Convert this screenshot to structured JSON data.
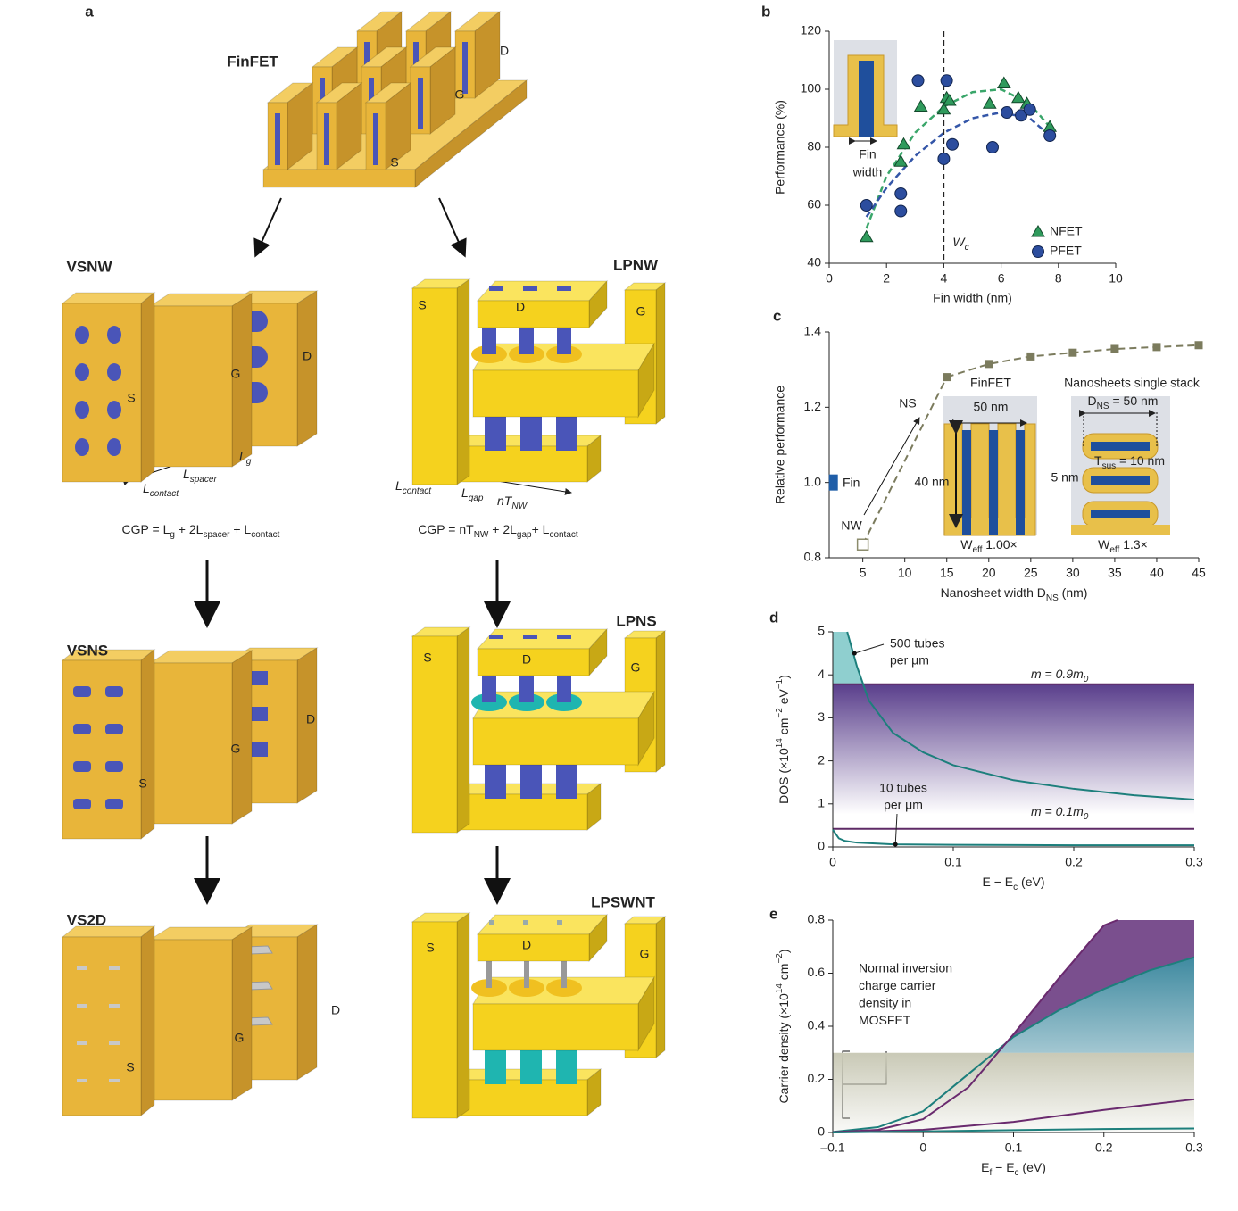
{
  "panel_a": {
    "label": "a",
    "devices": [
      {
        "name": "FinFET",
        "source": "S",
        "gate": "G",
        "drain": "D"
      },
      {
        "name": "VSNW",
        "source": "S",
        "gate": "G",
        "drain": "D"
      },
      {
        "name": "LPNW",
        "source": "S",
        "gate": "G",
        "drain": "D"
      },
      {
        "name": "VSNS",
        "source": "S",
        "gate": "G",
        "drain": "D"
      },
      {
        "name": "LPNS",
        "source": "S",
        "gate": "G",
        "drain": "D"
      },
      {
        "name": "VS2D",
        "source": "S",
        "gate": "G",
        "drain": "D"
      },
      {
        "name": "LPSWNT",
        "source": "S",
        "gate": "G",
        "drain": "D"
      }
    ],
    "vsnw_dimensions": [
      [
        {
          "main": "L",
          "sub": "contact"
        }
      ],
      [
        {
          "main": "L",
          "sub": "spacer"
        }
      ],
      [
        {
          "main": "L",
          "sub": "g"
        }
      ]
    ],
    "lpnw_dimensions": [
      [
        {
          "main": "L",
          "sub": "contact"
        }
      ],
      [
        {
          "main": "L",
          "sub": "gap"
        }
      ],
      [
        {
          "main": "nT",
          "sub": "NW"
        }
      ]
    ],
    "vsnw_formula": [
      {
        "main": "CGP = L",
        "sub": "g"
      },
      {
        "main": " + 2L",
        "sub": "spacer"
      },
      {
        "main": " + L",
        "sub": "contact"
      }
    ],
    "lpnw_formula": [
      {
        "main": "CGP = nT",
        "sub": "NW"
      },
      {
        "main": " + 2L",
        "sub": "gap"
      },
      {
        "main": "+ L",
        "sub": "contact"
      }
    ]
  },
  "chart_data": [
    {
      "label": "b",
      "type": "scatter",
      "x_label": "Fin width (nm)",
      "y_label": "Performance (%)",
      "xlim": [
        0,
        10
      ],
      "xticks": [
        0,
        2,
        4,
        6,
        8,
        10
      ],
      "ylim": [
        40,
        120
      ],
      "yticks": [
        40,
        60,
        80,
        100,
        120
      ],
      "series": [
        {
          "name": "NFET",
          "color": "#2f9a5c",
          "marker": "triangle",
          "x": [
            1.3,
            2.5,
            2.6,
            3.2,
            4.0,
            4.1,
            4.2,
            5.6,
            6.1,
            6.6,
            6.9,
            7.7
          ],
          "values": [
            49,
            75,
            81,
            94,
            93,
            97,
            96,
            95,
            102,
            97,
            95,
            87
          ]
        },
        {
          "name": "PFET",
          "color": "#2c4d9e",
          "marker": "circle",
          "x": [
            1.3,
            2.5,
            2.5,
            3.1,
            4.0,
            4.1,
            4.3,
            5.7,
            6.2,
            6.7,
            7.0,
            7.7
          ],
          "values": [
            60,
            64,
            58,
            103,
            76,
            103,
            81,
            80,
            92,
            91,
            93,
            84
          ]
        }
      ],
      "fits": [
        {
          "color": "#3aa66a",
          "x": [
            1.3,
            2,
            3,
            4,
            5,
            6,
            7,
            7.7
          ],
          "values": [
            52,
            70,
            85,
            94,
            99,
            100,
            95,
            87
          ]
        },
        {
          "color": "#3456a8",
          "x": [
            1.3,
            2,
            3,
            4,
            5,
            6,
            7,
            7.7
          ],
          "values": [
            56,
            66,
            77,
            85,
            90,
            92,
            90,
            84
          ]
        }
      ],
      "threshold": {
        "x": 4,
        "label": [
          {
            "main": "W",
            "sub": "c"
          }
        ]
      },
      "inset_label": [
        "Fin",
        "width"
      ],
      "legend": "lower right"
    },
    {
      "label": "c",
      "type": "scatter",
      "x_label": [
        {
          "main": "Nanosheet width D",
          "sub": "NS"
        },
        {
          "main": " (nm)"
        }
      ],
      "y_label": "Relative performance",
      "xlim": [
        1,
        45
      ],
      "xticks": [
        5,
        10,
        15,
        20,
        25,
        30,
        35,
        40,
        45
      ],
      "ylim": [
        0.8,
        1.4
      ],
      "yticks": [
        0.8,
        {
          "value": 1,
          "label": "1.0"
        },
        1.2,
        1.4
      ],
      "series": [
        {
          "name": "NW",
          "color": "#8c8c6c",
          "marker": "open-square",
          "x": [
            5
          ],
          "values": [
            0.835
          ]
        },
        {
          "name": "NS",
          "color": "#7b7b5d",
          "marker": "square",
          "line": "dashed",
          "x": [
            15,
            20,
            25,
            30,
            35,
            40,
            45
          ],
          "values": [
            1.28,
            1.315,
            1.335,
            1.345,
            1.355,
            1.36,
            1.365
          ]
        },
        {
          "name": "Fin",
          "color": "#1f5ea8",
          "marker": "bar",
          "x": [
            1.5
          ],
          "values": [
            1
          ]
        }
      ],
      "insets": {
        "finfet": {
          "title": "FinFET",
          "width": "50 nm",
          "height": "40 nm",
          "w_eff": [
            {
              "main": "W",
              "sub": "eff"
            },
            {
              "main": " 1.00×"
            }
          ]
        },
        "nanosheets": {
          "title": "Nanosheets single stack",
          "width": [
            {
              "main": "D",
              "sub": "NS"
            },
            {
              "main": " = 50 nm"
            }
          ],
          "t_sus": [
            {
              "main": "T",
              "sub": "sus"
            },
            {
              "main": " = 10 nm"
            }
          ],
          "gap": "5 nm",
          "w_eff": [
            {
              "main": "W",
              "sub": "eff"
            },
            {
              "main": " 1.3×"
            }
          ]
        }
      }
    },
    {
      "label": "d",
      "type": "line",
      "x_label": [
        {
          "main": "E − E",
          "sub": "c"
        },
        {
          "main": " (eV)"
        }
      ],
      "y_label": [
        {
          "main": "DOS (×10",
          "sup": "14"
        },
        {
          "main": " cm",
          "sup": "−2"
        },
        {
          "main": " eV",
          "sup": "−1"
        },
        {
          "main": ")"
        }
      ],
      "xlim": [
        0,
        0.3
      ],
      "xticks": [
        0,
        0.1,
        0.2,
        0.3
      ],
      "ylim": [
        0,
        5
      ],
      "yticks": [
        0,
        1,
        2,
        3,
        4,
        5
      ],
      "series": [
        {
          "color": "#1d7f7c",
          "fill": "#8fcfcf",
          "x": [
            0.012,
            0.02,
            0.03,
            0.05,
            0.075,
            0.1,
            0.15,
            0.2,
            0.25,
            0.3
          ],
          "values": [
            5,
            4.2,
            3.4,
            2.65,
            2.2,
            1.9,
            1.55,
            1.35,
            1.2,
            1.1
          ]
        },
        {
          "color": "#1d7f7c",
          "x": [
            0,
            0.005,
            0.01,
            0.02,
            0.05,
            0.1,
            0.2,
            0.3
          ],
          "values": [
            0.4,
            0.2,
            0.14,
            0.1,
            0.06,
            0.05,
            0.04,
            0.04
          ]
        }
      ],
      "levels": [
        {
          "value": 3.78,
          "color": "#5e2a66",
          "label": [
            {
              "main": "m = 0.9m",
              "sub": "0"
            }
          ]
        },
        {
          "value": 0.42,
          "color": "#5e2a66",
          "label": [
            {
              "main": "m = 0.1m",
              "sub": "0"
            }
          ]
        }
      ],
      "annotations": [
        {
          "text": [
            "500 tubes",
            "per μm"
          ],
          "x": 0.018,
          "y": 4.5
        },
        {
          "text": [
            "10 tubes",
            "per μm"
          ],
          "x": 0.052,
          "y": 0.06
        }
      ]
    },
    {
      "label": "e",
      "type": "line",
      "x_label": [
        {
          "main": "E",
          "sub": "f"
        },
        {
          "main": " − E",
          "sub": "c"
        },
        {
          "main": " (eV)"
        }
      ],
      "y_label": [
        {
          "main": "Carrier density (×10",
          "sup": "14"
        },
        {
          "main": " cm",
          "sup": "−2"
        },
        {
          "main": ")"
        }
      ],
      "xlim": [
        -0.1,
        0.3
      ],
      "xticks": [
        {
          "value": -0.1,
          "label": "–0.1"
        },
        0,
        0.1,
        0.2,
        0.3
      ],
      "ylim": [
        0,
        0.8
      ],
      "yticks": [
        0,
        0.2,
        0.4,
        0.6,
        0.8
      ],
      "series": [
        {
          "color": "#1d7f7c",
          "fill": "#3f8aa0",
          "x": [
            -0.1,
            -0.05,
            0,
            0.05,
            0.1,
            0.15,
            0.2,
            0.25,
            0.3
          ],
          "values": [
            0.002,
            0.02,
            0.08,
            0.22,
            0.36,
            0.46,
            0.54,
            0.61,
            0.66
          ]
        },
        {
          "color": "#6a2a6e",
          "fill": "#7a4f8e",
          "x": [
            -0.1,
            -0.05,
            0,
            0.05,
            0.1,
            0.15,
            0.2,
            0.215
          ],
          "values": [
            0.001,
            0.01,
            0.05,
            0.17,
            0.37,
            0.58,
            0.78,
            0.8
          ]
        },
        {
          "color": "#6a2a6e",
          "x": [
            -0.1,
            0,
            0.1,
            0.2,
            0.3
          ],
          "values": [
            0,
            0.01,
            0.04,
            0.085,
            0.125
          ]
        },
        {
          "color": "#1d7f7c",
          "x": [
            -0.1,
            0,
            0.1,
            0.2,
            0.3
          ],
          "values": [
            0,
            0.004,
            0.009,
            0.013,
            0.015
          ]
        }
      ],
      "band": [
        0,
        0.3
      ],
      "band_label": [
        "Normal inversion",
        "charge carrier",
        "density in",
        "MOSFET"
      ]
    }
  ]
}
